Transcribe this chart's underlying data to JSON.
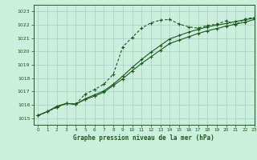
{
  "title": "Graphe pression niveau de la mer (hPa)",
  "background_color": "#cceedd",
  "grid_color": "#aacccc",
  "line_color": "#1a5c1a",
  "xlim": [
    -0.5,
    23
  ],
  "ylim": [
    1014.5,
    1023.5
  ],
  "yticks": [
    1015,
    1016,
    1017,
    1018,
    1019,
    1020,
    1021,
    1022,
    1023
  ],
  "xticks": [
    0,
    1,
    2,
    3,
    4,
    5,
    6,
    7,
    8,
    9,
    10,
    11,
    12,
    13,
    14,
    15,
    16,
    17,
    18,
    19,
    20,
    21,
    22,
    23
  ],
  "series1_x": [
    0,
    1,
    2,
    3,
    4,
    5,
    6,
    7,
    8,
    9,
    10,
    11,
    12,
    13,
    14,
    15,
    16,
    17,
    18,
    19,
    20,
    21,
    22,
    23
  ],
  "series1_y": [
    1015.2,
    1015.5,
    1015.8,
    1016.1,
    1016.05,
    1016.8,
    1017.15,
    1017.55,
    1018.3,
    1020.35,
    1021.05,
    1021.75,
    1022.15,
    1022.35,
    1022.4,
    1022.05,
    1021.85,
    1021.75,
    1021.95,
    1022.05,
    1022.3,
    1022.0,
    1022.45,
    1022.55
  ],
  "series2_x": [
    0,
    1,
    2,
    3,
    4,
    5,
    6,
    7,
    8,
    9,
    10,
    11,
    12,
    13,
    14,
    15,
    16,
    17,
    18,
    19,
    20,
    21,
    22,
    23
  ],
  "series2_y": [
    1015.2,
    1015.5,
    1015.85,
    1016.1,
    1016.05,
    1016.45,
    1016.75,
    1017.05,
    1017.55,
    1018.15,
    1018.8,
    1019.4,
    1019.95,
    1020.45,
    1020.95,
    1021.2,
    1021.45,
    1021.65,
    1021.85,
    1021.98,
    1022.1,
    1022.25,
    1022.38,
    1022.5
  ],
  "series3_x": [
    0,
    1,
    2,
    3,
    4,
    5,
    6,
    7,
    8,
    9,
    10,
    11,
    12,
    13,
    14,
    15,
    16,
    17,
    18,
    19,
    20,
    21,
    22,
    23
  ],
  "series3_y": [
    1015.2,
    1015.5,
    1015.9,
    1016.1,
    1016.05,
    1016.4,
    1016.65,
    1016.95,
    1017.45,
    1017.95,
    1018.55,
    1019.1,
    1019.6,
    1020.1,
    1020.6,
    1020.85,
    1021.1,
    1021.35,
    1021.55,
    1021.72,
    1021.9,
    1022.05,
    1022.2,
    1022.4
  ]
}
